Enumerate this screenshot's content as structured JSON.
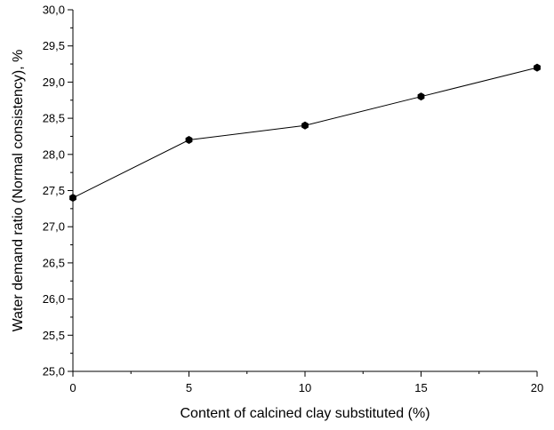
{
  "chart_data": {
    "type": "line",
    "title": "",
    "xlabel": "Content of calcined clay substituted (%)",
    "ylabel": "Water demand ratio (Normal consistency), %",
    "xlim": [
      0,
      20
    ],
    "ylim": [
      25.0,
      30.0
    ],
    "x_ticks": [
      "0",
      "5",
      "10",
      "15",
      "20"
    ],
    "y_ticks": [
      "25,0",
      "25,5",
      "26,0",
      "26,5",
      "27,0",
      "27,5",
      "28,0",
      "28,5",
      "29,0",
      "29,5",
      "30,0"
    ],
    "grid": false,
    "series": [
      {
        "x": [
          0,
          5,
          10,
          15,
          20
        ],
        "values": [
          27.4,
          28.2,
          28.4,
          28.8,
          29.2
        ],
        "color": "#000000",
        "marker": "hexagon"
      }
    ]
  }
}
